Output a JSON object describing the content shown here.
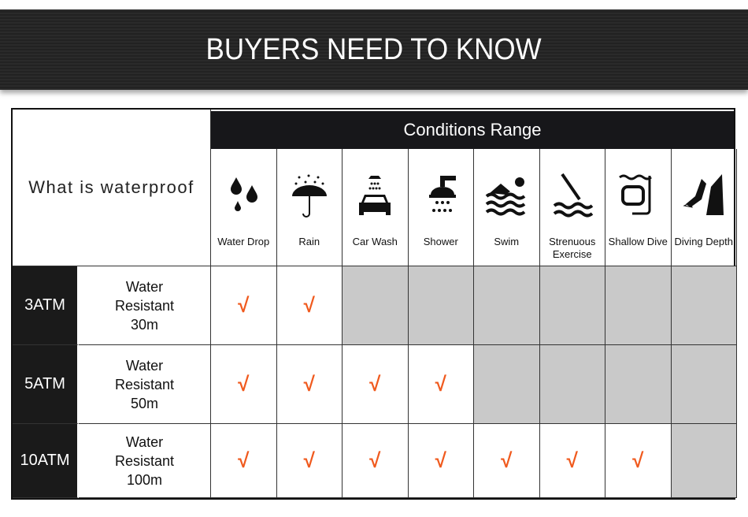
{
  "banner": {
    "title": "BUYERS NEED TO KNOW"
  },
  "table": {
    "corner_label": "What is waterproof",
    "conditions_header": "Conditions Range",
    "conditions": [
      {
        "label": "Water Drop",
        "icon": "water-drop-icon"
      },
      {
        "label": "Rain",
        "icon": "umbrella-rain-icon"
      },
      {
        "label": "Car Wash",
        "icon": "car-wash-icon"
      },
      {
        "label": "Shower",
        "icon": "shower-icon"
      },
      {
        "label": "Swim",
        "icon": "swimmer-icon"
      },
      {
        "label": "Strenuous Exercise",
        "icon": "diver-jump-icon"
      },
      {
        "label": "Shallow Dive",
        "icon": "snorkel-mask-icon"
      },
      {
        "label": "Diving Depth",
        "icon": "scuba-diver-icon"
      }
    ],
    "rows": [
      {
        "rating": "3ATM",
        "description": "Water Resistant 30m",
        "supported": [
          true,
          true,
          false,
          false,
          false,
          false,
          false,
          false
        ]
      },
      {
        "rating": "5ATM",
        "description": "Water Resistant 50m",
        "supported": [
          true,
          true,
          true,
          true,
          false,
          false,
          false,
          false
        ]
      },
      {
        "rating": "10ATM",
        "description": "Water Resistant 100m",
        "supported": [
          true,
          true,
          true,
          true,
          true,
          true,
          true,
          false
        ]
      }
    ],
    "check_mark": "√",
    "colors": {
      "check": "#f05a1e",
      "unsupported": "#c9c9c9",
      "header": "#17171a"
    }
  }
}
